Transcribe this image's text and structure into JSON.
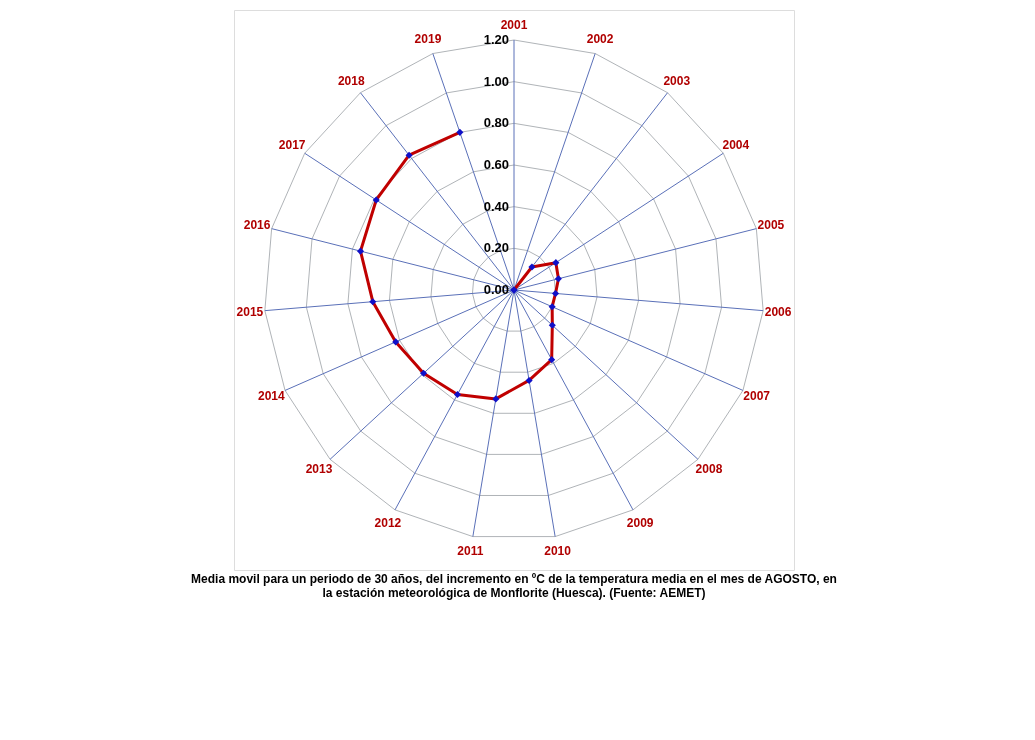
{
  "chart_data": {
    "type": "radar",
    "categories": [
      "2001",
      "2002",
      "2003",
      "2004",
      "2005",
      "2006",
      "2007",
      "2008",
      "2009",
      "2010",
      "2011",
      "2012",
      "2013",
      "2014",
      "2015",
      "2016",
      "2017",
      "2018",
      "2019"
    ],
    "series": [
      {
        "color": "#c00000",
        "values": [
          0.0,
          0.0,
          0.14,
          0.24,
          0.22,
          0.2,
          0.2,
          0.25,
          0.38,
          0.44,
          0.53,
          0.57,
          0.59,
          0.62,
          0.68,
          0.76,
          0.79,
          0.82,
          0.8
        ]
      }
    ],
    "ylim": [
      0,
      1.2
    ],
    "yticks": [
      {
        "value": 0,
        "label": "0.00"
      },
      {
        "value": 0.2,
        "label": "0.20"
      },
      {
        "value": 0.4,
        "label": "0.40"
      },
      {
        "value": 0.6,
        "label": "0.60"
      },
      {
        "value": 0.8,
        "label": "0.80"
      },
      {
        "value": 1.0,
        "label": "1.00"
      },
      {
        "value": 1.2,
        "label": "1.20"
      }
    ],
    "grid": true,
    "marker": "diamond",
    "line_style": "solid",
    "annotations": [
      "Media movil para un periodo de 30 años, del incremento en ºC de la temperatura media en el mes de AGOSTO, en\nla estación meteorológica de Monflorite (Huesca). (Fuente: AEMET)"
    ]
  }
}
